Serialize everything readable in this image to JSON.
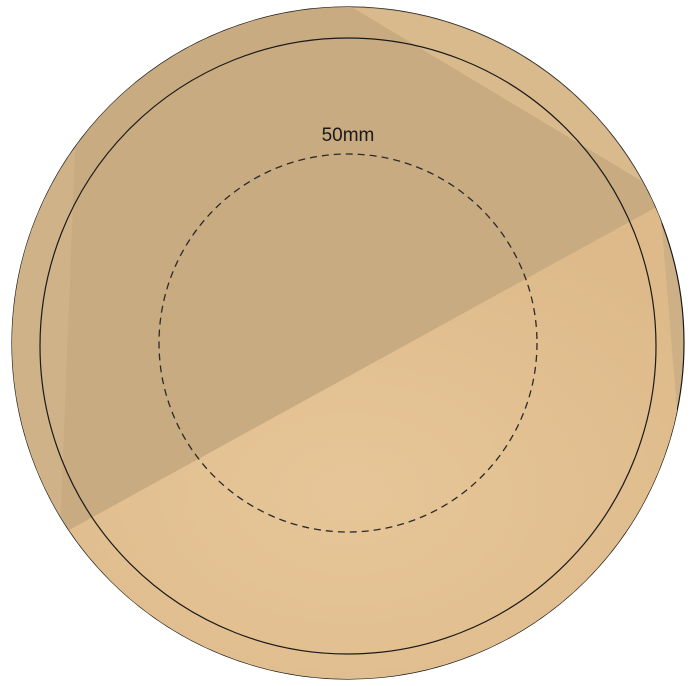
{
  "diagram": {
    "dimension_label": "50mm",
    "colors": {
      "rim": "#ceb086",
      "disc_light": "#e3c292",
      "disc_shadow": "#c9ad82",
      "stroke": "#1a1a1a",
      "dashed": "#2a2a2a"
    }
  }
}
